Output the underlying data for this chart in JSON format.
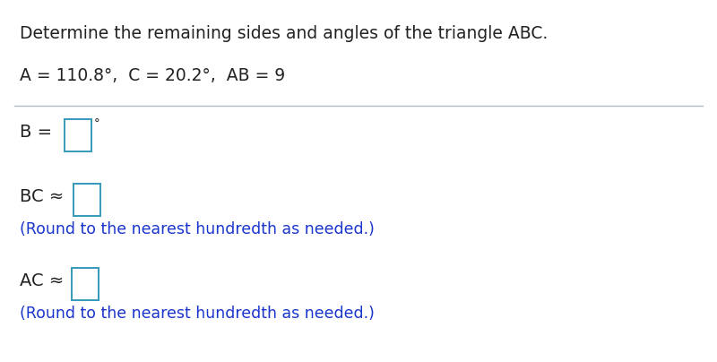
{
  "title": "Determine the remaining sides and angles of the triangle ABC.",
  "given_line": "A = 110.8°,  C = 20.2°,  AB = 9",
  "b_label": "B = ",
  "b_unit": "°",
  "bc_label": "BC ≈",
  "ac_label": "AC ≈",
  "round_note": "(Round to the nearest hundredth as needed.)",
  "bg_color": "#ffffff",
  "text_color_black": "#222222",
  "text_color_blue": "#1a35cc",
  "box_edge_color": "#3399bb",
  "separator_color": "#b0b8c8",
  "title_fontsize": 13.5,
  "given_fontsize": 13.5,
  "answer_fontsize": 14.0,
  "note_fontsize": 12.5,
  "degree_fontsize": 9.5
}
